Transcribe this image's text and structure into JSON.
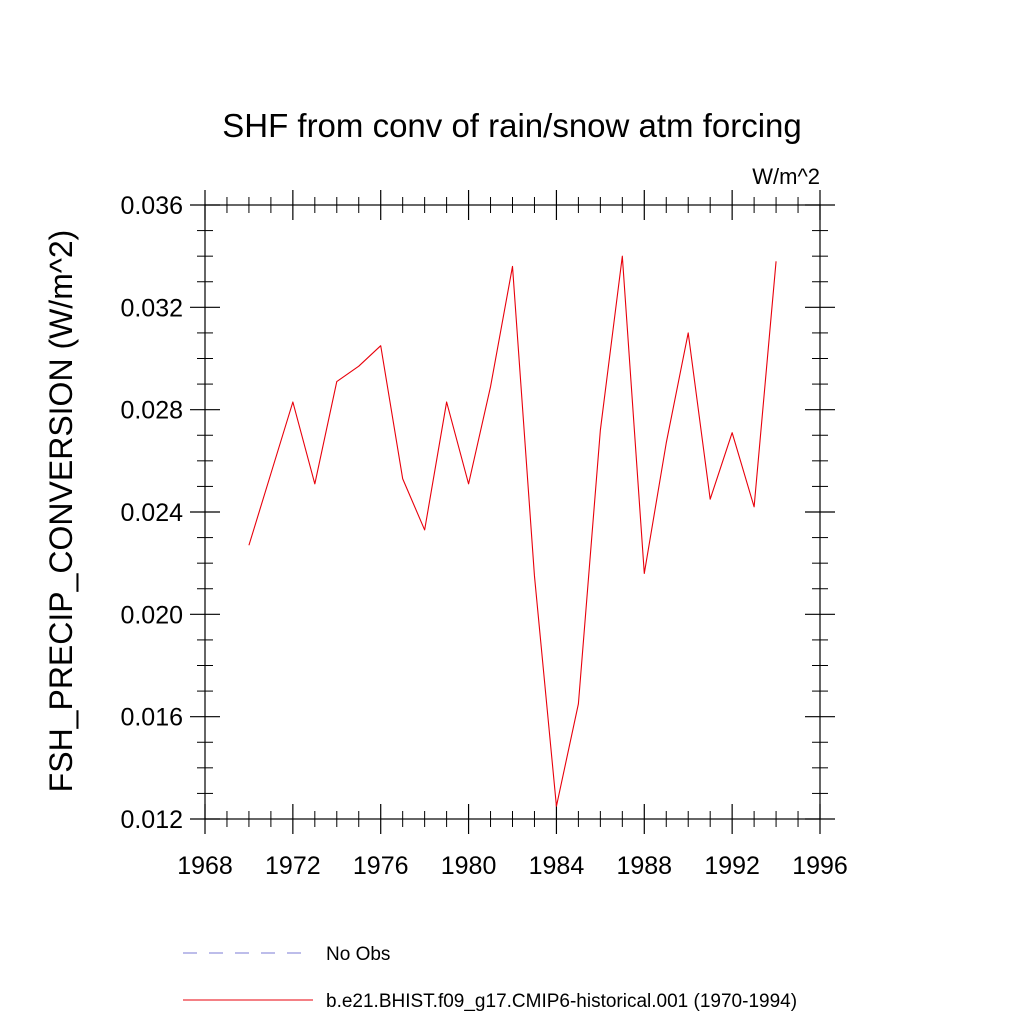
{
  "chart_data": {
    "type": "line",
    "title": "SHF from conv of rain/snow atm forcing",
    "units_label": "W/m^2",
    "ylabel": "FSH_PRECIP_CONVERSION  (W/m^2)",
    "xlabel": "",
    "xlim": [
      1968,
      1996
    ],
    "ylim": [
      0.012,
      0.036
    ],
    "x_ticks": [
      1968,
      1972,
      1976,
      1980,
      1984,
      1988,
      1992,
      1996
    ],
    "x_tick_labels": [
      "1968",
      "1972",
      "1976",
      "1980",
      "1984",
      "1988",
      "1992",
      "1996"
    ],
    "y_ticks": [
      0.012,
      0.016,
      0.02,
      0.024,
      0.028,
      0.032,
      0.036
    ],
    "y_tick_labels": [
      "0.012",
      "0.016",
      "0.020",
      "0.024",
      "0.028",
      "0.032",
      "0.036"
    ],
    "x_minor_step": 1,
    "y_minor_step": 0.001,
    "series": [
      {
        "name": "b.e21.BHIST.f09_g17.CMIP6-historical.001 (1970-1994)",
        "color": "#e8000b",
        "x": [
          1970,
          1971,
          1972,
          1973,
          1974,
          1975,
          1976,
          1977,
          1978,
          1979,
          1980,
          1981,
          1982,
          1983,
          1984,
          1985,
          1986,
          1987,
          1988,
          1989,
          1990,
          1991,
          1992,
          1993,
          1994
        ],
        "values": [
          0.0227,
          0.0255,
          0.0283,
          0.0251,
          0.0291,
          0.0297,
          0.0305,
          0.0253,
          0.0233,
          0.0283,
          0.0251,
          0.0289,
          0.0336,
          0.0215,
          0.0125,
          0.0165,
          0.0272,
          0.034,
          0.0216,
          0.0267,
          0.031,
          0.0245,
          0.0271,
          0.0242,
          0.0338
        ]
      }
    ],
    "legend": [
      {
        "label": "No Obs",
        "style": "dashed",
        "color": "#7b7bd4"
      },
      {
        "label": "b.e21.BHIST.f09_g17.CMIP6-historical.001 (1970-1994)",
        "style": "solid",
        "color": "#e8000b"
      }
    ]
  }
}
